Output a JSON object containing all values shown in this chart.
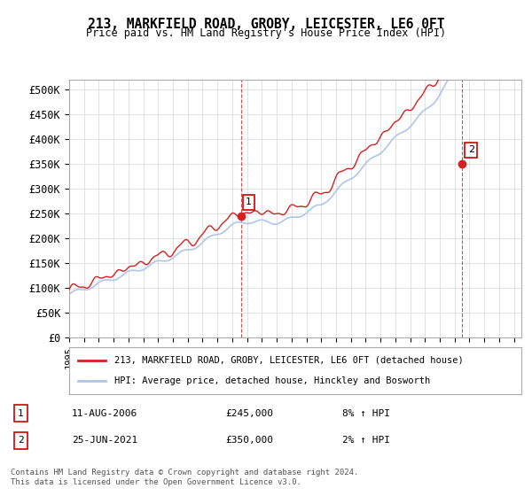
{
  "title": "213, MARKFIELD ROAD, GROBY, LEICESTER, LE6 0FT",
  "subtitle": "Price paid vs. HM Land Registry's House Price Index (HPI)",
  "legend_line1": "213, MARKFIELD ROAD, GROBY, LEICESTER, LE6 0FT (detached house)",
  "legend_line2": "HPI: Average price, detached house, Hinckley and Bosworth",
  "table_row1_num": "1",
  "table_row1_date": "11-AUG-2006",
  "table_row1_price": "£245,000",
  "table_row1_hpi": "8% ↑ HPI",
  "table_row2_num": "2",
  "table_row2_date": "25-JUN-2021",
  "table_row2_price": "£350,000",
  "table_row2_hpi": "2% ↑ HPI",
  "footer": "Contains HM Land Registry data © Crown copyright and database right 2024.\nThis data is licensed under the Open Government Licence v3.0.",
  "ylabel_ticks": [
    "£0",
    "£50K",
    "£100K",
    "£150K",
    "£200K",
    "£250K",
    "£300K",
    "£350K",
    "£400K",
    "£450K",
    "£500K"
  ],
  "ytick_values": [
    0,
    50000,
    100000,
    150000,
    200000,
    250000,
    300000,
    350000,
    400000,
    450000,
    500000
  ],
  "hpi_color": "#aec6e8",
  "price_color": "#d42020",
  "marker_color_1": "#d42020",
  "marker_color_2": "#d42020",
  "sale1_year": 2006.6,
  "sale1_value": 245000,
  "sale2_year": 2021.5,
  "sale2_value": 350000,
  "annotation1_label": "1",
  "annotation2_label": "2",
  "background_color": "#ffffff",
  "grid_color": "#dddddd",
  "xmin": 1995,
  "xmax": 2025.5
}
